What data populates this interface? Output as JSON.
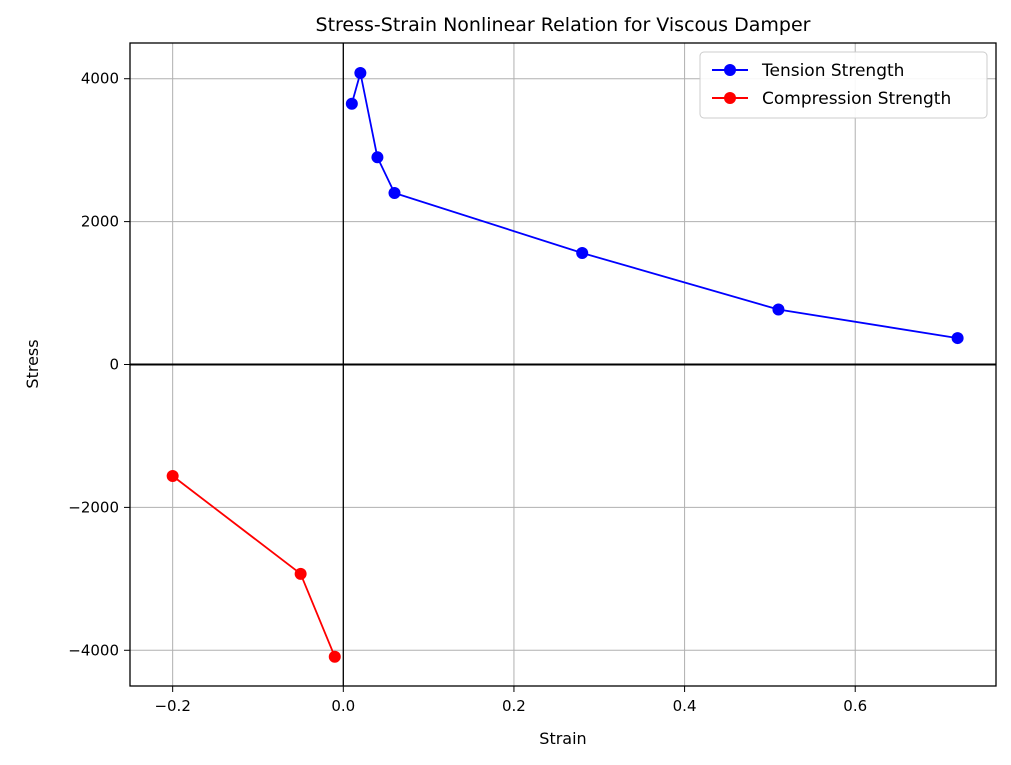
{
  "chart_data": {
    "type": "line",
    "title": "Stress-Strain Nonlinear Relation for Viscous Damper",
    "xlabel": "Strain",
    "ylabel": "Stress",
    "xlim": [
      -0.25,
      0.765
    ],
    "ylim": [
      -4500,
      4500
    ],
    "xticks": [
      -0.2,
      0,
      0.2,
      0.4,
      0.6
    ],
    "xtick_labels": [
      "−0.2",
      "0.0",
      "0.2",
      "0.4",
      "0.6"
    ],
    "yticks": [
      -4000,
      -2000,
      0,
      2000,
      4000
    ],
    "ytick_labels": [
      "−4000",
      "−2000",
      "0",
      "2000",
      "4000"
    ],
    "grid": true,
    "legend_position": "top-right",
    "series": [
      {
        "name": "Tension Strength",
        "color": "#0000ff",
        "marker": "circle",
        "x": [
          0.01,
          0.02,
          0.04,
          0.06,
          0.28,
          0.51,
          0.72
        ],
        "y": [
          3650,
          4080,
          2900,
          2400,
          1560,
          770,
          370
        ]
      },
      {
        "name": "Compression Strength",
        "color": "#ff0000",
        "marker": "circle",
        "x": [
          -0.2,
          -0.05,
          -0.01
        ],
        "y": [
          -1560,
          -2930,
          -4090
        ]
      }
    ]
  }
}
